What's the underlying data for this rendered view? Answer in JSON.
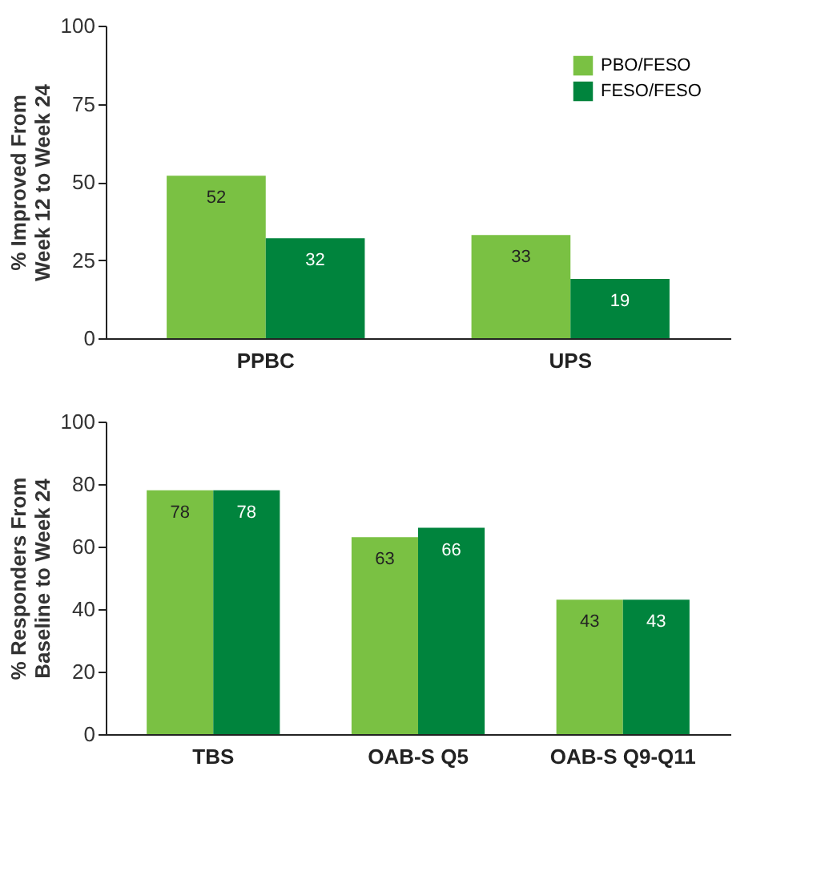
{
  "chart_data": [
    {
      "type": "bar",
      "ylabel": "% Improved From\nWeek 12 to Week 24",
      "categories": [
        "PPBC",
        "UPS"
      ],
      "series": [
        {
          "name": "PBO/FESO",
          "color": "#7ac143",
          "values": [
            52,
            33
          ]
        },
        {
          "name": "FESO/FESO",
          "color": "#00843d",
          "values": [
            32,
            19
          ]
        }
      ],
      "ylim": [
        0,
        100
      ],
      "yticks": [
        0,
        25,
        50,
        75,
        100
      ],
      "grid": false,
      "legend": "top right",
      "data_labels": true
    },
    {
      "type": "bar",
      "ylabel": "% Responders From\nBaseline to Week 24",
      "categories": [
        "TBS",
        "OAB-S Q5",
        "OAB-S Q9-Q11"
      ],
      "series": [
        {
          "color": "#7ac143",
          "values": [
            78,
            63,
            43
          ]
        },
        {
          "color": "#00843d",
          "values": [
            78,
            66,
            43
          ]
        }
      ],
      "ylim": [
        0,
        100
      ],
      "yticks": [
        0,
        20,
        40,
        60,
        80,
        100
      ],
      "grid": false,
      "legend": false,
      "data_labels": true
    }
  ]
}
